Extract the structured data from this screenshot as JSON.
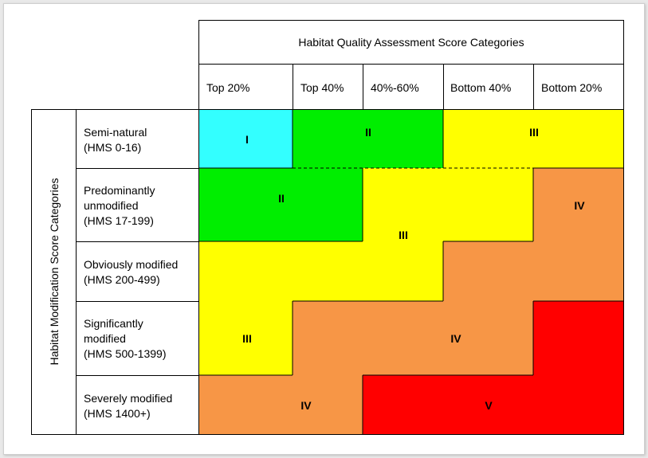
{
  "header": {
    "title": "Habitat Quality Assessment Score Categories",
    "columns": [
      "Top 20%",
      "Top 40%",
      "40%-60%",
      "Bottom 40%",
      "Bottom 20%"
    ]
  },
  "side": {
    "title": "Habitat Modification Score Categories",
    "rows": [
      {
        "line1": "Semi-natural",
        "line2": "(HMS 0-16)",
        "line3": ""
      },
      {
        "line1": "Predominantly",
        "line2": "unmodified",
        "line3": "(HMS 17-199)"
      },
      {
        "line1": "Obviously modified",
        "line2": "(HMS 200-499)",
        "line3": ""
      },
      {
        "line1": "Significantly",
        "line2": "modified",
        "line3": "(HMS 500-1399)"
      },
      {
        "line1": "Severely modified",
        "line2": "(HMS 1400+)",
        "line3": ""
      }
    ]
  },
  "classes": {
    "I": "I",
    "II": "II",
    "III": "III",
    "IV": "IV",
    "V": "V"
  },
  "colors": {
    "I": "#33ffff",
    "II": "#00ee00",
    "III": "#ffff00",
    "IV": "#f79646",
    "V": "#ff0000"
  }
}
